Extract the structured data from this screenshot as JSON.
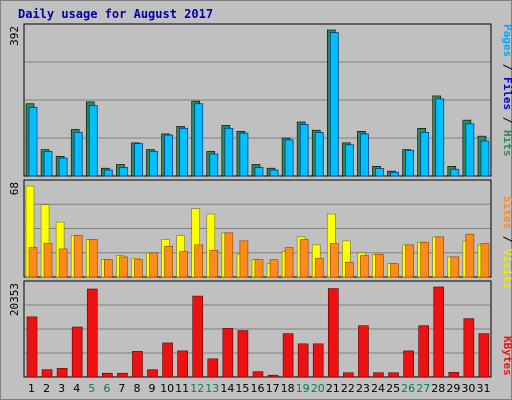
{
  "title": "Daily usage for August 2017",
  "colors": {
    "hits": "#2e8b57",
    "files": "#1e90ff",
    "pages": "#00c0ff",
    "visits": "#ffff00",
    "sites": "#ff8c1a",
    "kbytes": "#ee1111",
    "weekend_label": "#007f5f",
    "weekday_label": "#000000",
    "panel_bg": "#c0c0c0",
    "title": "#0000a8"
  },
  "side_labels": {
    "top": [
      {
        "text": "Pages",
        "color": "#00a8ff"
      },
      {
        "text": " / ",
        "color": "#000000"
      },
      {
        "text": "Files",
        "color": "#0000d0"
      },
      {
        "text": " / ",
        "color": "#000000"
      },
      {
        "text": "Hits",
        "color": "#2e8b57"
      }
    ],
    "middle": [
      {
        "text": "Sites",
        "color": "#ff8c1a"
      },
      {
        "text": " / ",
        "color": "#000000"
      },
      {
        "text": "Visits",
        "color": "#e8e800"
      }
    ],
    "bottom": [
      {
        "text": "KBytes",
        "color": "#ee1111"
      }
    ]
  },
  "chart_data": {
    "type": "bar",
    "categories": [
      "1",
      "2",
      "3",
      "4",
      "5",
      "6",
      "7",
      "8",
      "9",
      "10",
      "11",
      "12",
      "13",
      "14",
      "15",
      "16",
      "17",
      "18",
      "19",
      "20",
      "21",
      "22",
      "23",
      "24",
      "25",
      "26",
      "27",
      "28",
      "29",
      "30",
      "31"
    ],
    "weekend_days": [
      "5",
      "6",
      "12",
      "13",
      "19",
      "20",
      "26",
      "27"
    ],
    "panels": [
      {
        "name": "usage",
        "ymax_label": "392",
        "ylim": [
          0,
          392
        ],
        "series": [
          {
            "name": "Hits",
            "values": [
              194,
              71,
              53,
              125,
              199,
              21,
              31,
              89,
              71,
              113,
              133,
              201,
              66,
              136,
              120,
              31,
              21,
              102,
              145,
              123,
              392,
              89,
              120,
              26,
              13,
              71,
              128,
              215,
              26,
              150,
              107
            ]
          },
          {
            "name": "Files",
            "values": [
              184,
              66,
              48,
              117,
              189,
              16,
              23,
              87,
              66,
              110,
              128,
              194,
              59,
              128,
              115,
              23,
              16,
              97,
              138,
              117,
              385,
              84,
              113,
              20,
              10,
              69,
              117,
              207,
              18,
              140,
              94
            ]
          },
          {
            "name": "Pages",
            "values": [
              184,
              66,
              48,
              117,
              189,
              16,
              23,
              87,
              66,
              110,
              128,
              194,
              59,
              128,
              115,
              23,
              16,
              97,
              138,
              117,
              385,
              84,
              113,
              20,
              10,
              69,
              117,
              207,
              18,
              140,
              94
            ]
          }
        ]
      },
      {
        "name": "visitors",
        "ymax_label": "68",
        "ylim": [
          0,
          68
        ],
        "series": [
          {
            "name": "Visits",
            "values": [
              68,
              54,
              41,
              31,
              28,
              13,
              16,
              14,
              18,
              28,
              31,
              51,
              47,
              33,
              17,
              13,
              10,
              19,
              30,
              24,
              47,
              27,
              18,
              17,
              10,
              24,
              26,
              30,
              15,
              27,
              24
            ]
          },
          {
            "name": "Sites",
            "values": [
              22,
              25,
              21,
              31,
              28,
              13,
              15,
              13,
              18,
              23,
              19,
              24,
              20,
              33,
              27,
              13,
              13,
              22,
              28,
              14,
              25,
              11,
              16,
              17,
              10,
              24,
              26,
              30,
              15,
              32,
              25
            ]
          }
        ]
      },
      {
        "name": "bytes",
        "ymax_label": "20353",
        "ylim": [
          0,
          20353
        ],
        "series": [
          {
            "name": "KBytes",
            "values": [
              13600,
              1650,
              1950,
              11300,
              19900,
              860,
              860,
              5800,
              1650,
              7700,
              5900,
              18300,
              4100,
              11000,
              10500,
              1200,
              410,
              9800,
              7500,
              7500,
              20000,
              960,
              11600,
              960,
              960,
              5900,
              11600,
              20353,
              1050,
              13200,
              9800
            ]
          }
        ]
      }
    ]
  }
}
